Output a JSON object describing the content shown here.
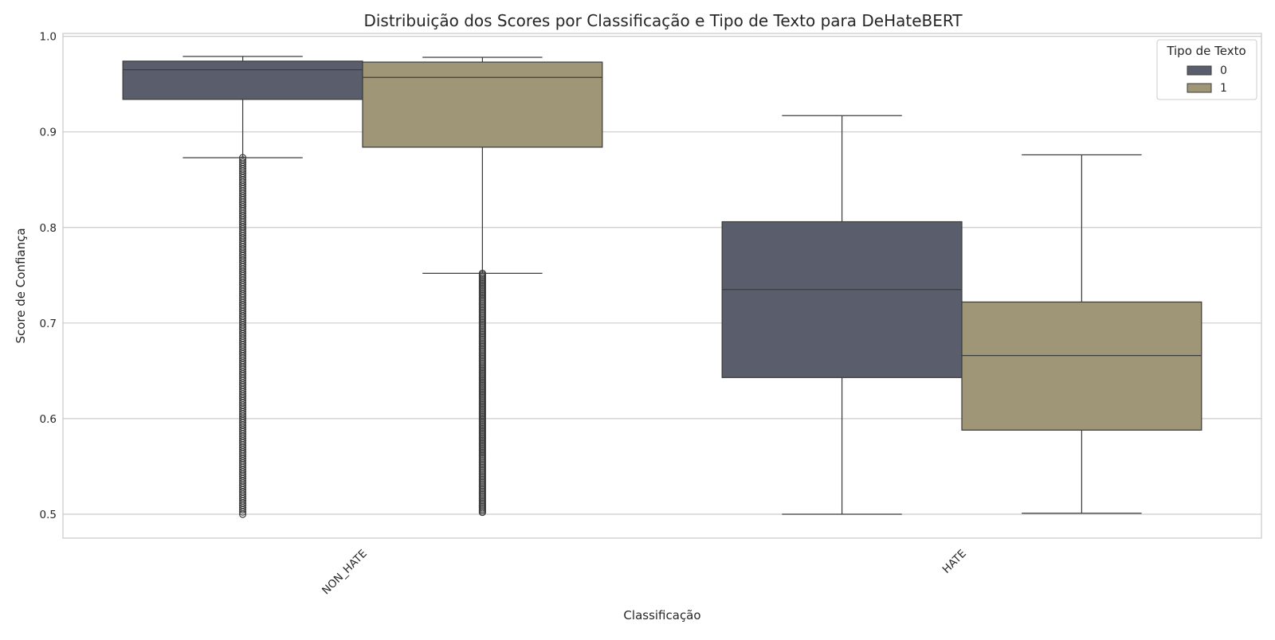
{
  "chart_data": {
    "type": "box",
    "title": "Distribuição dos Scores por Classificação e Tipo de Texto para DeHateBERT",
    "xlabel": "Classificação",
    "ylabel": "Score de Confiança",
    "ylim": [
      0.475,
      1.003
    ],
    "yticks": [
      0.5,
      0.6,
      0.7,
      0.8,
      0.9,
      1.0
    ],
    "ytick_labels": [
      "0.5",
      "0.6",
      "0.7",
      "0.8",
      "0.9",
      "1.0"
    ],
    "categories": [
      "NON_HATE",
      "HATE"
    ],
    "grid": true,
    "legend": {
      "title": "Tipo de Texto",
      "placement": "top-right"
    },
    "series": [
      {
        "name": "0",
        "color": "#5a5e6c",
        "boxes": [
          {
            "category": "NON_HATE",
            "whisker_low": 0.873,
            "q1": 0.934,
            "median": 0.965,
            "q3": 0.974,
            "whisker_high": 0.979,
            "outliers_range": [
              0.5,
              0.873
            ]
          },
          {
            "category": "HATE",
            "whisker_low": 0.5,
            "q1": 0.643,
            "median": 0.735,
            "q3": 0.806,
            "whisker_high": 0.917,
            "outliers_range": null
          }
        ]
      },
      {
        "name": "1",
        "color": "#9e9677",
        "boxes": [
          {
            "category": "NON_HATE",
            "whisker_low": 0.752,
            "q1": 0.884,
            "median": 0.957,
            "q3": 0.973,
            "whisker_high": 0.978,
            "outliers_range": [
              0.502,
              0.752
            ]
          },
          {
            "category": "HATE",
            "whisker_low": 0.501,
            "q1": 0.588,
            "median": 0.666,
            "q3": 0.722,
            "whisker_high": 0.876,
            "outliers_range": null
          }
        ]
      }
    ]
  }
}
